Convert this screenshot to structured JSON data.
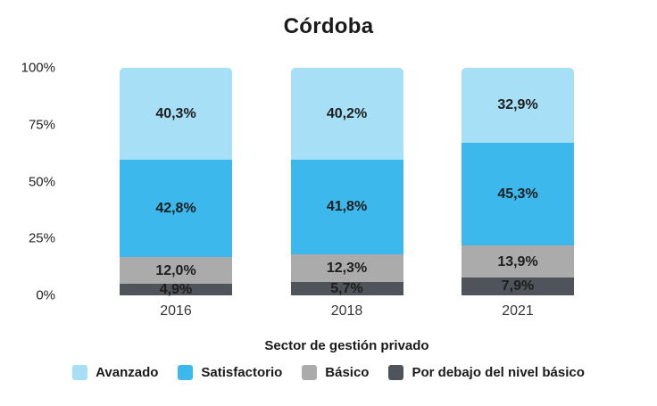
{
  "page": {
    "background": "#FFFFFF"
  },
  "chart_data": {
    "type": "bar",
    "variant": "stacked-percent",
    "title": "Córdoba",
    "xlabel": "Sector de gestión privado",
    "ylabel": "",
    "ylim": [
      0,
      100
    ],
    "grid": false,
    "legend_position": "bottom",
    "label_color": "#1E1E1E",
    "yticks": [
      {
        "label": "100%",
        "value": 100
      },
      {
        "label": "75%",
        "value": 75
      },
      {
        "label": "50%",
        "value": 50
      },
      {
        "label": "25%",
        "value": 25
      },
      {
        "label": "0%",
        "value": 0
      }
    ],
    "categories": [
      "2016",
      "2018",
      "2021"
    ],
    "series": [
      {
        "name": "Avanzado",
        "color": "#A7DFF6",
        "values": [
          40.3,
          40.2,
          32.9
        ],
        "labels": [
          "40,3%",
          "40,2%",
          "32,9%"
        ]
      },
      {
        "name": "Satisfactorio",
        "color": "#3CB8EC",
        "values": [
          42.8,
          41.8,
          45.3
        ],
        "labels": [
          "42,8%",
          "41,8%",
          "45,3%"
        ]
      },
      {
        "name": "Básico",
        "color": "#ABABAB",
        "values": [
          12.0,
          12.3,
          13.9
        ],
        "labels": [
          "12,0%",
          "12,3%",
          "13,9%"
        ]
      },
      {
        "name": "Por debajo del nivel básico",
        "color": "#4F545A",
        "values": [
          4.9,
          5.7,
          7.9
        ],
        "labels": [
          "4,9%",
          "5,7%",
          "7,9%"
        ]
      }
    ]
  }
}
